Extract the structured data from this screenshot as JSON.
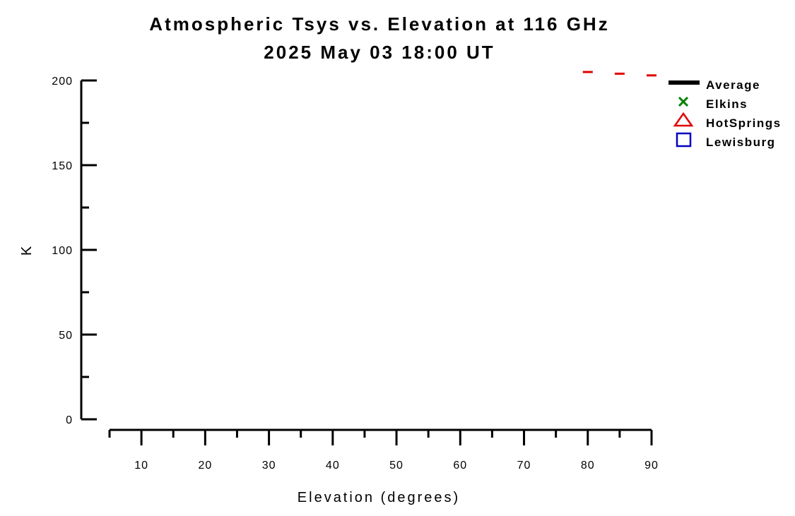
{
  "chart_data": {
    "type": "scatter",
    "title": "Atmospheric Tsys vs. Elevation at 116 GHz",
    "subtitle": "2025 May 03 18:00 UT",
    "xlabel": "Elevation (degrees)",
    "ylabel": "K",
    "xlim": [
      5,
      90
    ],
    "ylim": [
      0,
      200
    ],
    "xticks": [
      10,
      20,
      30,
      40,
      50,
      60,
      70,
      80,
      90
    ],
    "yticks": [
      0,
      50,
      100,
      150,
      200
    ],
    "grid": false,
    "legend_position": "top-right",
    "series": [
      {
        "name": "Average",
        "marker": "line",
        "color": "#000000",
        "x": [],
        "y": []
      },
      {
        "name": "Elkins",
        "marker": "x",
        "color": "#008000",
        "x": [],
        "y": []
      },
      {
        "name": "HotSprings",
        "marker": "triangle",
        "color": "#e00000",
        "x": [
          80,
          85,
          90
        ],
        "y": [
          205,
          204,
          203
        ]
      },
      {
        "name": "Lewisburg",
        "marker": "square",
        "color": "#0000c0",
        "x": [],
        "y": []
      }
    ]
  }
}
